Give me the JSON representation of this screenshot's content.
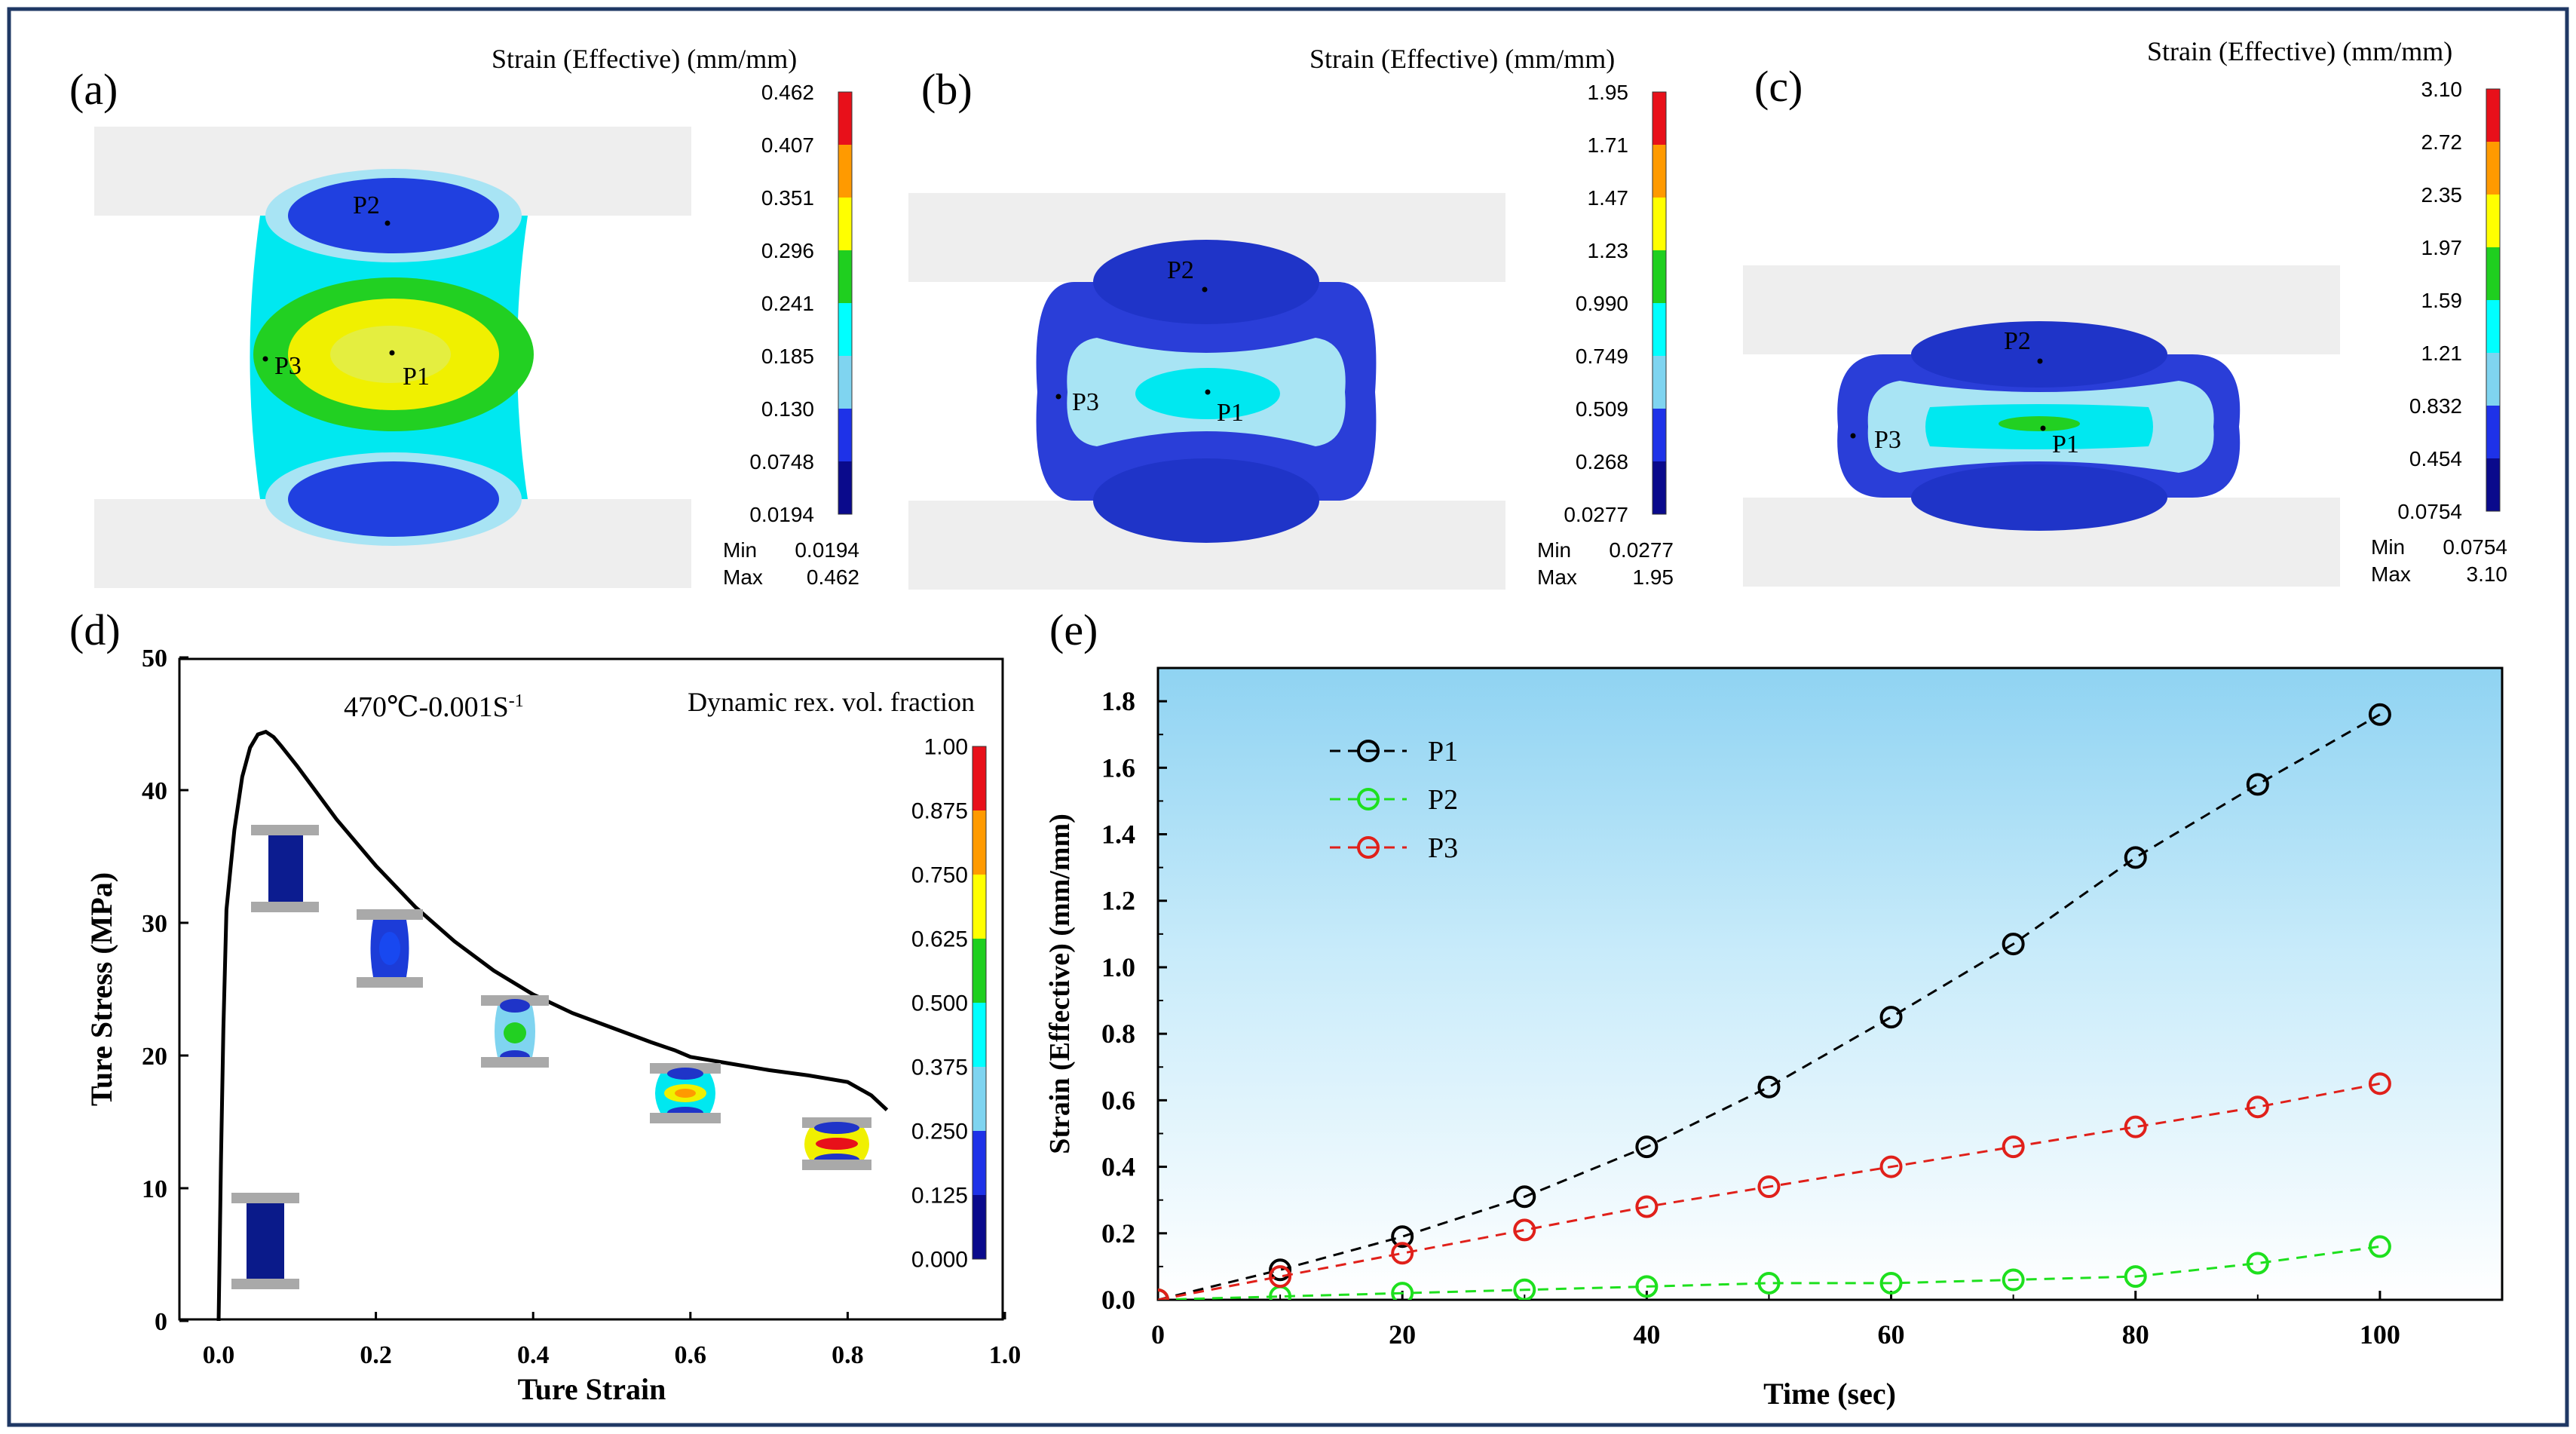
{
  "panels": {
    "a": {
      "label": "(a)",
      "colorbar_title": "Strain (Effective) (mm/mm)",
      "ticks": [
        "0.462",
        "0.407",
        "0.351",
        "0.296",
        "0.241",
        "0.185",
        "0.130",
        "0.0748",
        "0.0194"
      ],
      "min_label": "Min",
      "min_value": "0.0194",
      "max_label": "Max",
      "max_value": "0.462",
      "points": [
        "P1",
        "P2",
        "P3"
      ]
    },
    "b": {
      "label": "(b)",
      "colorbar_title": "Strain (Effective) (mm/mm)",
      "ticks": [
        "1.95",
        "1.71",
        "1.47",
        "1.23",
        "0.990",
        "0.749",
        "0.509",
        "0.268",
        "0.0277"
      ],
      "min_label": "Min",
      "min_value": "0.0277",
      "max_label": "Max",
      "max_value": "1.95",
      "points": [
        "P1",
        "P2",
        "P3"
      ]
    },
    "c": {
      "label": "(c)",
      "colorbar_title": "Strain (Effective) (mm/mm)",
      "ticks": [
        "3.10",
        "2.72",
        "2.35",
        "1.97",
        "1.59",
        "1.21",
        "0.832",
        "0.454",
        "0.0754"
      ],
      "min_label": "Min",
      "min_value": "0.0754",
      "max_label": "Max",
      "max_value": "3.10",
      "points": [
        "P1",
        "P2",
        "P3"
      ]
    }
  },
  "colorbar_colors": [
    "#e8101a",
    "#ff9a00",
    "#ffff00",
    "#1fcf1f",
    "#00ffff",
    "#7fd4f0",
    "#1e32e8",
    "#0a0a8c"
  ],
  "chart_data": [
    {
      "panel": "(d)",
      "type": "line",
      "annotation_condition": "470℃-0.001S",
      "annotation_superscript": "-1",
      "annotation_legend_title": "Dynamic rex. vol. fraction",
      "xlabel": "Ture Strain",
      "ylabel": "Ture Stress (MPa)",
      "xlim": [
        0.0,
        1.0
      ],
      "ylim": [
        0,
        50
      ],
      "xticks": [
        "0.0",
        "0.2",
        "0.4",
        "0.6",
        "0.8",
        "1.0"
      ],
      "yticks": [
        "0",
        "10",
        "20",
        "30",
        "40",
        "50"
      ],
      "colorbar_ticks": [
        "1.00",
        "0.875",
        "0.750",
        "0.625",
        "0.500",
        "0.375",
        "0.250",
        "0.125",
        "0.000"
      ],
      "series": [
        {
          "x": [
            0.0,
            0.003,
            0.006,
            0.01,
            0.015,
            0.02,
            0.03,
            0.04,
            0.05,
            0.06,
            0.07,
            0.08,
            0.1,
            0.12,
            0.15,
            0.2,
            0.25,
            0.3,
            0.35,
            0.4,
            0.45,
            0.5,
            0.55,
            0.58,
            0.6,
            0.65,
            0.7,
            0.75,
            0.8,
            0.83,
            0.85
          ],
          "y": [
            0,
            12,
            22,
            31,
            34,
            37,
            41,
            43.2,
            44.2,
            44.4,
            44.0,
            43.3,
            41.8,
            40.2,
            37.8,
            34.3,
            31.2,
            28.6,
            26.4,
            24.6,
            23.2,
            22.1,
            21.0,
            20.4,
            19.9,
            19.4,
            18.9,
            18.5,
            18.0,
            17.0,
            15.9
          ]
        }
      ]
    },
    {
      "panel": "(e)",
      "type": "line",
      "xlabel": "Time (sec)",
      "ylabel": "Strain (Effective) (mm/mm)",
      "xlim": [
        0,
        110
      ],
      "ylim": [
        0,
        1.9
      ],
      "xticks": [
        "0",
        "20",
        "40",
        "60",
        "80",
        "100"
      ],
      "yticks": [
        "0.0",
        "0.2",
        "0.4",
        "0.6",
        "0.8",
        "1.0",
        "1.2",
        "1.4",
        "1.6",
        "1.8"
      ],
      "legend_position": "top-left",
      "x": [
        0,
        10,
        20,
        30,
        40,
        50,
        60,
        70,
        80,
        90,
        100
      ],
      "series": [
        {
          "name": "P1",
          "color": "#000000",
          "values": [
            0.0,
            0.09,
            0.19,
            0.31,
            0.46,
            0.64,
            0.85,
            1.07,
            1.33,
            1.55,
            1.76
          ]
        },
        {
          "name": "P2",
          "color": "#1ee01e",
          "values": [
            0.0,
            0.01,
            0.02,
            0.03,
            0.04,
            0.05,
            0.05,
            0.06,
            0.07,
            0.11,
            0.16
          ]
        },
        {
          "name": "P3",
          "color": "#e0201a",
          "values": [
            0.0,
            0.07,
            0.14,
            0.21,
            0.28,
            0.34,
            0.4,
            0.46,
            0.52,
            0.58,
            0.65
          ]
        }
      ]
    }
  ]
}
